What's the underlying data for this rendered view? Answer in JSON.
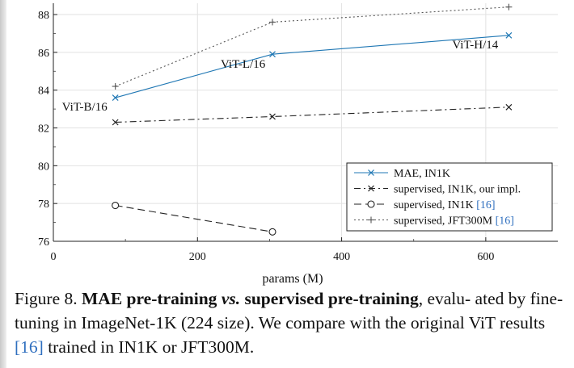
{
  "chart_data": {
    "type": "line",
    "xlabel": "params (M)",
    "ylabel": "",
    "xlim": [
      0,
      700
    ],
    "ylim": [
      76,
      88.6
    ],
    "x_ticks": [
      "0",
      "200",
      "400",
      "600"
    ],
    "y_ticks": [
      "76",
      "78",
      "80",
      "82",
      "84",
      "86",
      "88"
    ],
    "grid": true,
    "legend_position": "bottom-right",
    "model_labels": [
      "ViT-B/16",
      "ViT-L/16",
      "ViT-H/14"
    ],
    "series": [
      {
        "name": "MAE, IN1K",
        "color": "#1f77b4",
        "marker": "x",
        "dash": "solid",
        "x": [
          86,
          304,
          632
        ],
        "y": [
          83.6,
          85.9,
          86.9
        ]
      },
      {
        "name": "supervised, IN1K, our impl.",
        "color": "#222222",
        "marker": "x",
        "dash": "dashdot",
        "x": [
          86,
          304,
          632
        ],
        "y": [
          82.3,
          82.6,
          83.1
        ]
      },
      {
        "name": "supervised, IN1K [16]",
        "color": "#222222",
        "marker": "o",
        "dash": "dashed",
        "x": [
          86,
          304
        ],
        "y": [
          77.9,
          76.5
        ]
      },
      {
        "name": "supervised, JFT300M [16]",
        "color": "#555555",
        "marker": "+",
        "dash": "dotted",
        "x": [
          86,
          304,
          632
        ],
        "y": [
          84.2,
          87.6,
          88.4
        ]
      }
    ]
  },
  "legend": {
    "items": [
      {
        "main": "MAE, IN1K",
        "cite": ""
      },
      {
        "main": "supervised, IN1K, our impl.",
        "cite": ""
      },
      {
        "main": "supervised, IN1K ",
        "cite": "[16]"
      },
      {
        "main": "supervised, JFT300M ",
        "cite": "[16]"
      }
    ]
  },
  "caption": {
    "prefix": "Figure 8. ",
    "bold_a": "MAE pre-training ",
    "bold_vs": "vs.",
    "bold_b": " supervised pre-training",
    "text1": ", evalu- ated by fine-tuning in ImageNet-1K (224 size). We compare with the original ViT results ",
    "cite": "[16]",
    "text2": " trained in IN1K or JFT300M."
  }
}
